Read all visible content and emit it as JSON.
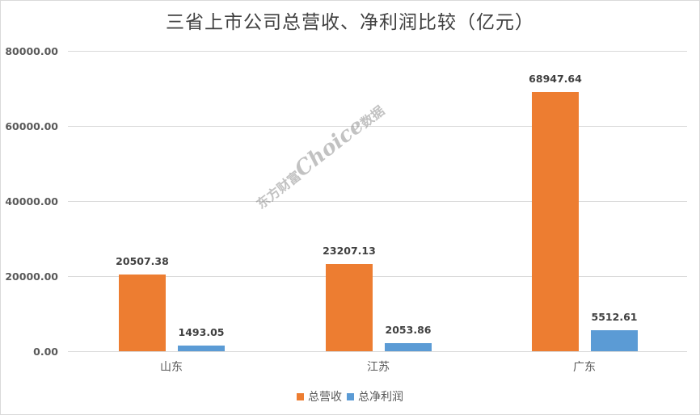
{
  "chart_data": {
    "type": "bar",
    "title": "三省上市公司总营收、净利润比较（亿元）",
    "xlabel": "",
    "ylabel": "",
    "categories": [
      "山东",
      "江苏",
      "广东"
    ],
    "series": [
      {
        "name": "总营收",
        "color": "#ed7d31",
        "values": [
          20507.38,
          23207.13,
          68947.64
        ],
        "labels": [
          "20507.38",
          "23207.13",
          "68947.64"
        ]
      },
      {
        "name": "总净利润",
        "color": "#5b9bd5",
        "values": [
          1493.05,
          2053.86,
          5512.61
        ],
        "labels": [
          "1493.05",
          "2053.86",
          "5512.61"
        ]
      }
    ],
    "ylim": [
      0,
      80000
    ],
    "yticks": [
      "0.00",
      "20000.00",
      "40000.00",
      "60000.00",
      "80000.00"
    ],
    "grid": true,
    "legend_position": "bottom",
    "data_labels": true
  },
  "watermark": {
    "brand_cn": "东方财富",
    "brand_en": "Choice",
    "suffix_cn": "数据"
  }
}
